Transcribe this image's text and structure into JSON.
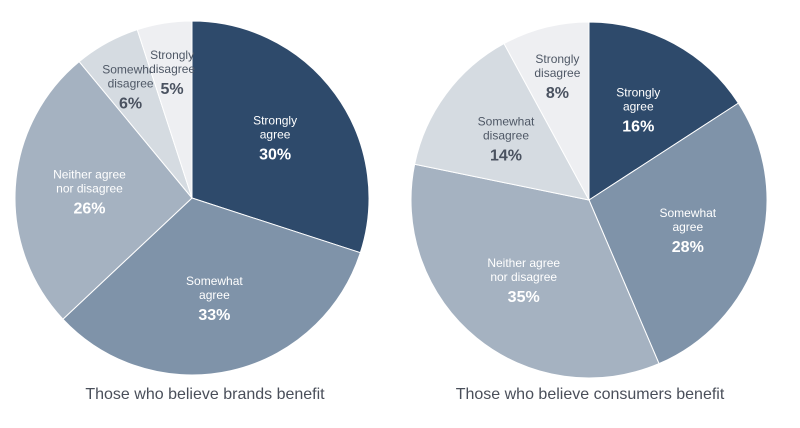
{
  "chart_data": [
    {
      "type": "pie",
      "title": "Those who believe brands benefit",
      "categories": [
        "Strongly agree",
        "Somewhat agree",
        "Neither agree nor disagree",
        "Somewhat disagree",
        "Strongly disagree"
      ],
      "label_lines": [
        [
          "Strongly",
          "agree"
        ],
        [
          "Somewhat",
          "agree"
        ],
        [
          "Neither agree",
          "nor disagree"
        ],
        [
          "Somewhat",
          "disagree"
        ],
        [
          "Strongly",
          "disagree"
        ]
      ],
      "values": [
        30,
        33,
        26,
        6,
        5
      ],
      "value_labels": [
        "30%",
        "33%",
        "26%",
        "6%",
        "5%"
      ],
      "colors": [
        "#2e4a6b",
        "#7f93a9",
        "#a5b2c1",
        "#d5dbe1",
        "#eeeff2"
      ]
    },
    {
      "type": "pie",
      "title": "Those who believe consumers benefit",
      "categories": [
        "Strongly agree",
        "Somewhat agree",
        "Neither agree nor disagree",
        "Somewhat disagree",
        "Strongly disagree"
      ],
      "label_lines": [
        [
          "Strongly",
          "agree"
        ],
        [
          "Somewhat",
          "agree"
        ],
        [
          "Neither agree",
          "nor disagree"
        ],
        [
          "Somewhat",
          "disagree"
        ],
        [
          "Strongly",
          "disagree"
        ]
      ],
      "values": [
        16,
        28,
        35,
        14,
        8
      ],
      "value_labels": [
        "16%",
        "28%",
        "35%",
        "14%",
        "8%"
      ],
      "colors": [
        "#2e4a6b",
        "#7f93a9",
        "#a5b2c1",
        "#d5dbe1",
        "#eeeff2"
      ]
    }
  ]
}
